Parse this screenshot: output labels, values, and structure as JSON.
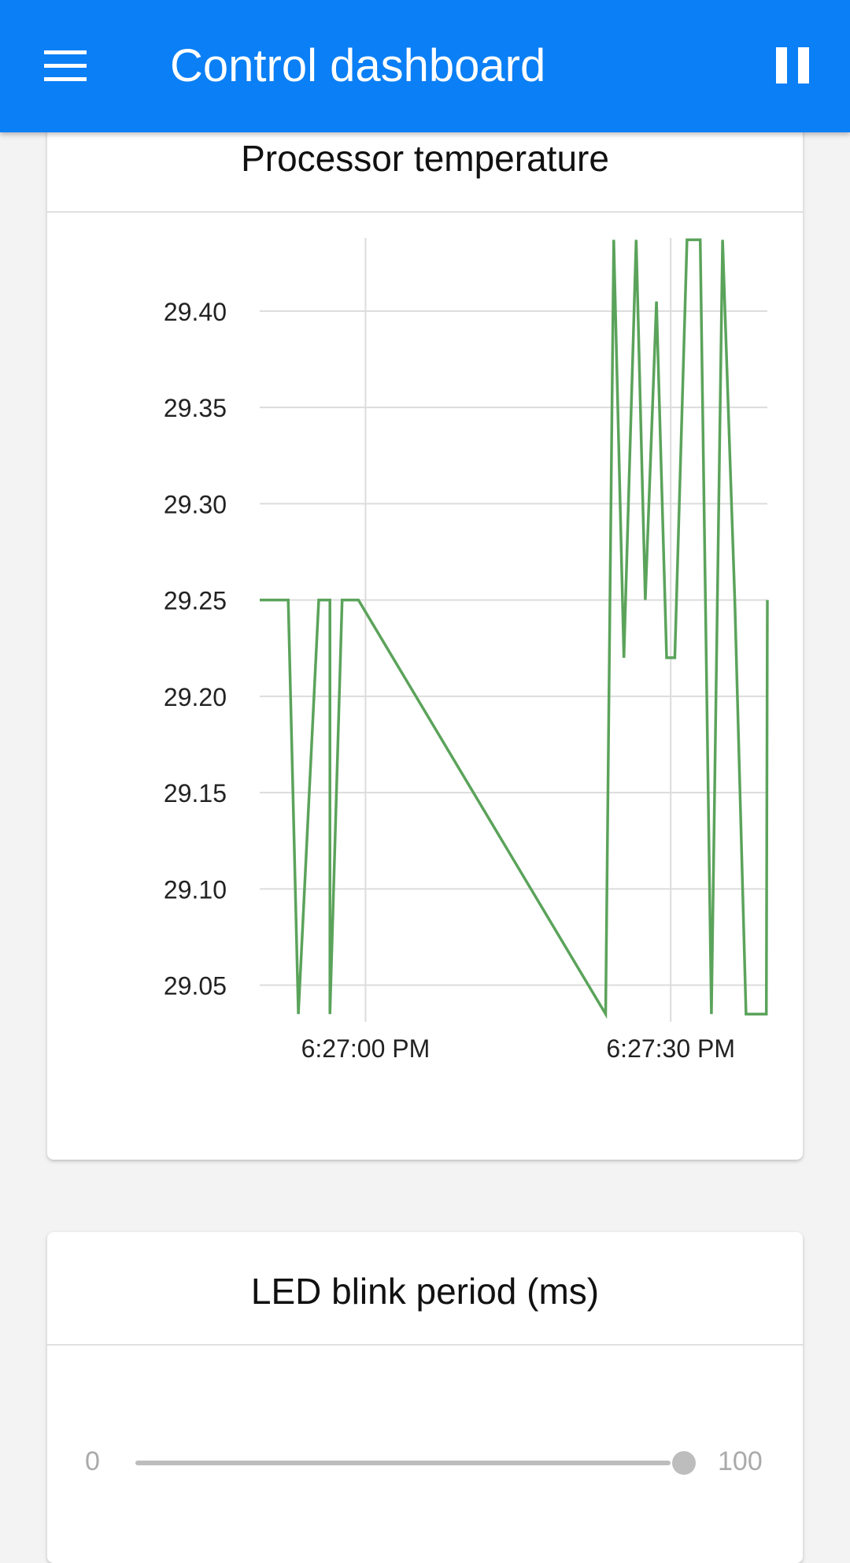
{
  "app_bar": {
    "title": "Control dashboard",
    "menu_icon": "menu-icon",
    "pause_icon": "pause-icon",
    "color": "#0b7ff5"
  },
  "temperature_card": {
    "title": "Processor temperature",
    "line_color": "#5ba35b",
    "chart_data": {
      "type": "line",
      "title": "",
      "xlabel": "",
      "ylabel": "",
      "y_ticks": [
        "29.05",
        "29.10",
        "29.15",
        "29.20",
        "29.25",
        "29.30",
        "29.35",
        "29.40"
      ],
      "x_ticks": [
        {
          "label": "6:27:00 PM",
          "t": 0
        },
        {
          "label": "6:27:30 PM",
          "t": 30
        }
      ],
      "ylim": [
        29.031,
        29.438
      ],
      "xlim": [
        -10.4,
        39.5
      ],
      "grid": true,
      "series": [
        {
          "x": [
            -10.4,
            -7.6,
            -6.6,
            -4.6,
            -3.5,
            -3.5,
            -2.3,
            -0.7,
            23.6,
            24.4,
            25.4,
            26.6,
            27.5,
            28.6,
            29.6,
            30.4,
            31.6,
            32.9,
            34.0,
            35.1,
            36.3,
            37.4,
            38.4,
            39.4,
            39.5
          ],
          "y": [
            29.25,
            29.25,
            29.035,
            29.25,
            29.25,
            29.035,
            29.25,
            29.25,
            29.035,
            29.437,
            29.22,
            29.437,
            29.25,
            29.405,
            29.22,
            29.22,
            29.437,
            29.437,
            29.035,
            29.437,
            29.25,
            29.035,
            29.035,
            29.035,
            29.25
          ]
        }
      ]
    }
  },
  "led_card": {
    "title": "LED blink period (ms)",
    "slider": {
      "min_label": "0",
      "max_label": "100",
      "value": 100
    }
  }
}
